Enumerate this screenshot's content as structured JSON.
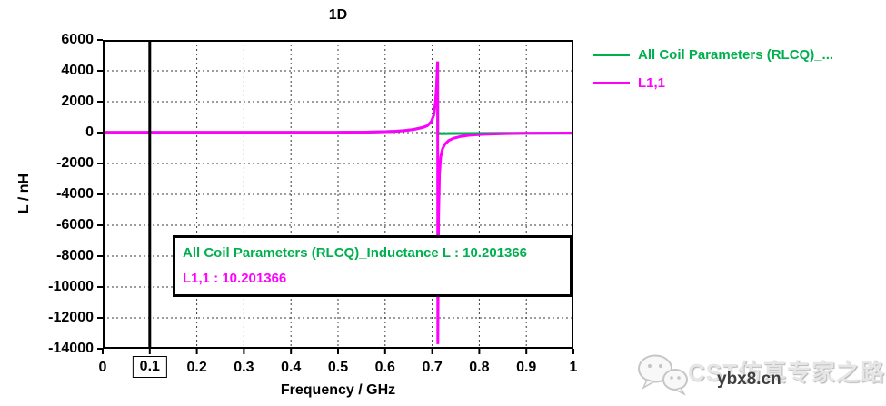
{
  "colors": {
    "green": "#00B04E",
    "magenta": "#FF00FF",
    "axis": "#000000",
    "grid": "#3a3a3a",
    "watermark_gray": "#e6e6e6",
    "site_gray": "#3f3f3f"
  },
  "chart_data": {
    "type": "line",
    "title": "1D",
    "xlabel": "Frequency / GHz",
    "ylabel": "L / nH",
    "xlim": [
      0,
      1
    ],
    "ylim": [
      -14000,
      6000
    ],
    "x_ticks": [
      "0",
      "0.1",
      "0.2",
      "0.3",
      "0.4",
      "0.5",
      "0.6",
      "0.7",
      "0.8",
      "0.9",
      "1"
    ],
    "y_ticks": [
      "6000",
      "4000",
      "2000",
      "0",
      "-2000",
      "-4000",
      "-6000",
      "-8000",
      "-10000",
      "-12000",
      "-14000"
    ],
    "grid": "dashed",
    "legend_position": "outside-top-right",
    "marker": {
      "x": 0.1,
      "boxed_tick_label": "0.1"
    },
    "series": [
      {
        "name": "All Coil Parameters (RLCQ)_...",
        "color_key": "green",
        "value_at_marker": 10.201366,
        "points": [
          [
            0,
            10
          ],
          [
            0.1,
            10
          ],
          [
            0.2,
            11
          ],
          [
            0.3,
            11
          ],
          [
            0.4,
            13
          ],
          [
            0.5,
            16
          ],
          [
            0.55,
            25
          ],
          [
            0.6,
            60
          ],
          [
            0.62,
            85
          ],
          [
            0.64,
            125
          ],
          [
            0.66,
            200
          ],
          [
            0.68,
            330
          ],
          [
            0.69,
            450
          ],
          [
            0.698,
            700
          ],
          [
            0.703,
            1100
          ],
          [
            0.707,
            1900
          ],
          [
            0.7095,
            3000
          ],
          [
            0.7115,
            4600
          ],
          [
            0.712,
            -70
          ],
          [
            0.75,
            -60
          ],
          [
            0.85,
            -50
          ],
          [
            1,
            -40
          ]
        ]
      },
      {
        "name": "L1,1",
        "color_key": "magenta",
        "value_at_marker": 10.201366,
        "points": [
          [
            0,
            10
          ],
          [
            0.1,
            10
          ],
          [
            0.2,
            11
          ],
          [
            0.3,
            11
          ],
          [
            0.4,
            13
          ],
          [
            0.5,
            16
          ],
          [
            0.55,
            25
          ],
          [
            0.6,
            60
          ],
          [
            0.62,
            85
          ],
          [
            0.64,
            125
          ],
          [
            0.66,
            200
          ],
          [
            0.68,
            330
          ],
          [
            0.69,
            450
          ],
          [
            0.698,
            700
          ],
          [
            0.703,
            1100
          ],
          [
            0.707,
            1900
          ],
          [
            0.7095,
            3000
          ],
          [
            0.7115,
            4600
          ],
          [
            0.712,
            -13700
          ],
          [
            0.7135,
            -5500
          ],
          [
            0.7155,
            -2700
          ],
          [
            0.718,
            -1600
          ],
          [
            0.722,
            -1050
          ],
          [
            0.727,
            -750
          ],
          [
            0.735,
            -520
          ],
          [
            0.745,
            -370
          ],
          [
            0.76,
            -250
          ],
          [
            0.78,
            -170
          ],
          [
            0.81,
            -110
          ],
          [
            0.85,
            -70
          ],
          [
            0.9,
            -45
          ],
          [
            0.95,
            -35
          ],
          [
            1,
            -30
          ]
        ]
      }
    ]
  },
  "legend": {
    "items": [
      {
        "label": "All Coil Parameters (RLCQ)_...",
        "color_key": "green"
      },
      {
        "label": "L1,1",
        "color_key": "magenta"
      }
    ]
  },
  "infobox": {
    "lines": [
      {
        "text": "All Coil Parameters (RLCQ)_Inductance L : 10.201366",
        "color_key": "green"
      },
      {
        "text": "L1,1 : 10.201366",
        "color_key": "magenta"
      }
    ]
  },
  "watermark": {
    "icon": "wechat-icon",
    "brand": "CST仿真专家之路",
    "site": "ybx8.cn"
  }
}
